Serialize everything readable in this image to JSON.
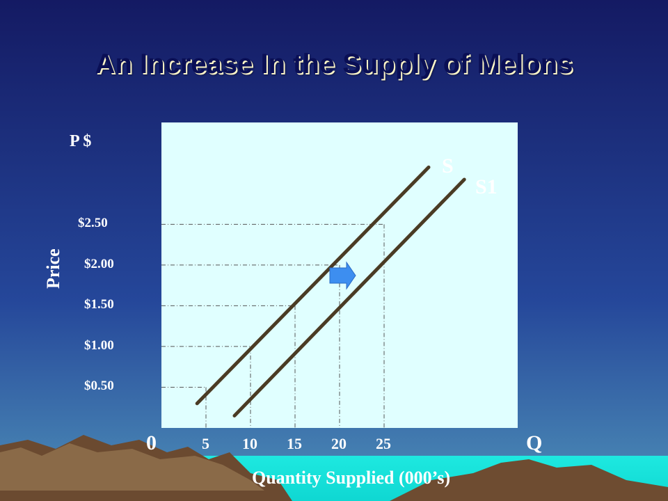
{
  "title": "An Increase In the Supply of Melons",
  "colors": {
    "plot_bg": "#e0ffff",
    "line": "#4a3b24",
    "arrow": "#3d8ef0",
    "sky_top": "#16206a",
    "sky_bottom": "#3f80b0",
    "ground": "#17e3de",
    "mountain": "#6b4a30"
  },
  "chart_data": {
    "type": "line",
    "title": "An Increase In the Supply of Melons",
    "xlabel": "Quantity Supplied (000’s)",
    "ylabel": "Price",
    "y_unit_label": "P $",
    "x_end_label": "Q",
    "origin_label": "0",
    "xlim": [
      0,
      40
    ],
    "ylim": [
      0,
      3.75
    ],
    "x_ticks": [
      {
        "value": 5,
        "label": "5"
      },
      {
        "value": 10,
        "label": "10"
      },
      {
        "value": 15,
        "label": "15"
      },
      {
        "value": 20,
        "label": "20"
      },
      {
        "value": 25,
        "label": "25"
      }
    ],
    "y_ticks": [
      {
        "value": 0.5,
        "label": "$0.50"
      },
      {
        "value": 1.0,
        "label": "$1.00"
      },
      {
        "value": 1.5,
        "label": "$1.50"
      },
      {
        "value": 2.0,
        "label": "$2.00"
      },
      {
        "value": 2.5,
        "label": "$2.50"
      }
    ],
    "series": [
      {
        "name": "S",
        "x": [
          4.0,
          30.0
        ],
        "y": [
          0.3,
          3.2
        ]
      },
      {
        "name": "S1",
        "x": [
          8.2,
          34.0
        ],
        "y": [
          0.15,
          3.05
        ]
      }
    ],
    "guide_points": [
      {
        "x": 5,
        "y": 0.5
      },
      {
        "x": 10,
        "y": 1.0
      },
      {
        "x": 15,
        "y": 1.5
      },
      {
        "x": 20,
        "y": 2.0
      },
      {
        "x": 25,
        "y": 2.5
      }
    ],
    "annotation": "right arrow indicating supply shift from S to S1"
  }
}
